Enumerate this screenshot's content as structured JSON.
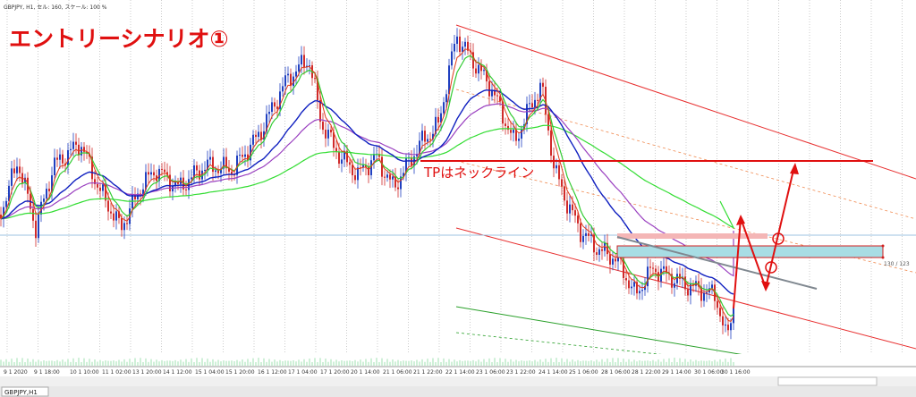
{
  "header": {
    "symbol_info": "GBPJPY, H1, セル: 160, スケール: 100 %"
  },
  "title": "エントリーシナリオ①",
  "annotations": {
    "take_profit": "TPはネックライン",
    "zone_label": "130 / 123"
  },
  "time_axis": [
    "9 1 2020",
    "9 1 18:00",
    "10 1 10:00",
    "11 1 02:00",
    "13 1 20:00",
    "14 1 12:00",
    "15 1 04:00",
    "15 1 20:00",
    "16 1 12:00",
    "17 1 04:00",
    "17 1 20:00",
    "20 1 14:00",
    "21 1 06:00",
    "21 1 22:00",
    "22 1 14:00",
    "23 1 06:00",
    "23 1 22:00",
    "24 1 14:00",
    "25 1 06:00",
    "28 1 06:00",
    "28 1 22:00",
    "29 1 14:00",
    "30 1 06:00",
    "30 1 16:00"
  ],
  "tabs": [
    "GBPJPY,H1"
  ]
}
